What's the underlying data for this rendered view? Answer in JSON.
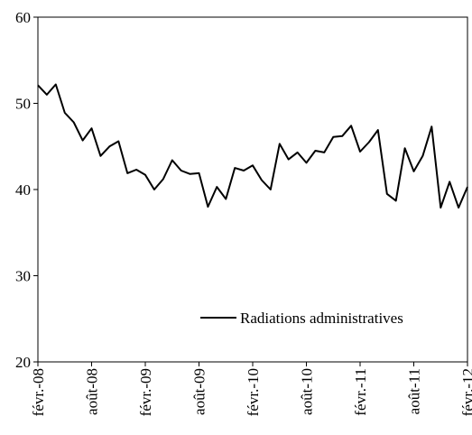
{
  "chart_data": {
    "type": "line",
    "title": "",
    "xlabel": "",
    "ylabel": "",
    "ylim": [
      20,
      60
    ],
    "yticks": [
      20,
      30,
      40,
      50,
      60
    ],
    "x_tick_labels": [
      "févr.-08",
      "août-08",
      "févr.-09",
      "août-09",
      "févr.-10",
      "août-10",
      "févr.-11",
      "août-11",
      "févr.-12"
    ],
    "x_tick_indices": [
      0,
      6,
      12,
      18,
      24,
      30,
      36,
      42,
      48
    ],
    "x_start": "févr.-08",
    "x_end": "févr.-12",
    "frequency": "monthly",
    "grid": false,
    "legend_position": "lower-right",
    "series": [
      {
        "name": "Radiations administratives",
        "color": "#000000",
        "values": [
          52.1,
          51.0,
          52.2,
          48.9,
          47.8,
          45.7,
          47.1,
          43.9,
          45.0,
          45.6,
          41.9,
          42.3,
          41.7,
          40.0,
          41.2,
          43.4,
          42.2,
          41.8,
          41.9,
          38.0,
          40.3,
          38.9,
          42.5,
          42.2,
          42.8,
          41.1,
          40.0,
          45.3,
          43.5,
          44.3,
          43.1,
          44.5,
          44.3,
          46.1,
          46.2,
          47.4,
          44.4,
          45.5,
          46.9,
          39.5,
          38.7,
          44.8,
          42.1,
          43.9,
          47.3,
          37.9,
          40.9,
          37.9,
          40.3
        ]
      }
    ]
  }
}
